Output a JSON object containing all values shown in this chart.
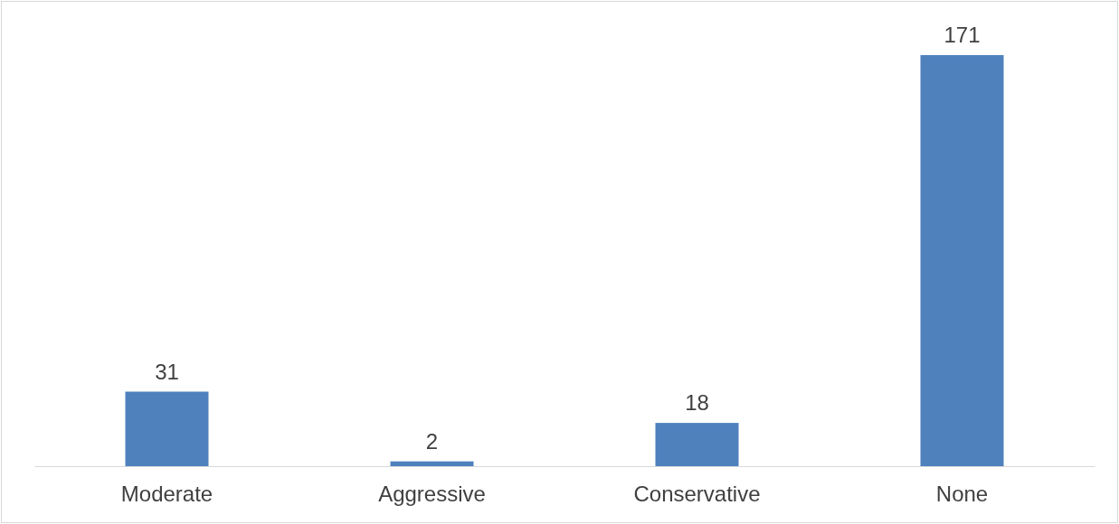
{
  "chart_data": {
    "type": "bar",
    "categories": [
      "Moderate",
      "Aggressive",
      "Conservative",
      "None"
    ],
    "values": [
      31,
      2,
      18,
      171
    ],
    "color": "#4f81bd",
    "data_labels": true
  }
}
